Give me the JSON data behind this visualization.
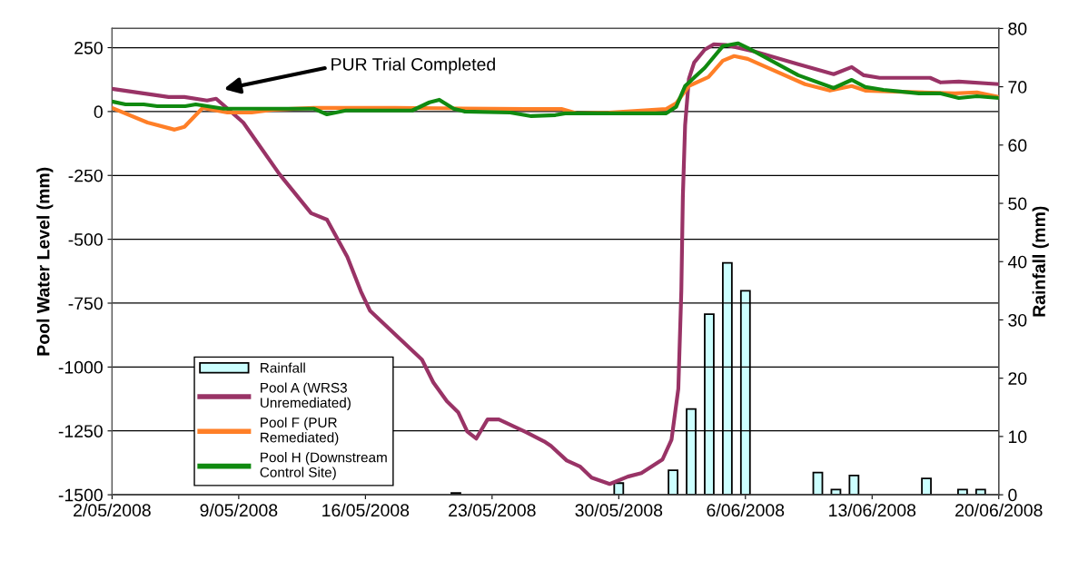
{
  "chart_data": {
    "type": "line",
    "ylabel": "Pool Water Level (mm)",
    "y2label": "Rainfall (mm)",
    "xlim": [
      "2008-05-02",
      "2008-06-20"
    ],
    "xticks": [
      {
        "value": "2008-05-02",
        "label": "2/05/2008"
      },
      {
        "value": "2008-05-09",
        "label": "9/05/2008"
      },
      {
        "value": "2008-05-16",
        "label": "16/05/2008"
      },
      {
        "value": "2008-05-23",
        "label": "23/05/2008"
      },
      {
        "value": "2008-05-30",
        "label": "30/05/2008"
      },
      {
        "value": "2008-06-06",
        "label": "6/06/2008"
      },
      {
        "value": "2008-06-13",
        "label": "13/06/2008"
      },
      {
        "value": "2008-06-20",
        "label": "20/06/2008"
      }
    ],
    "ylim": [
      -1500,
      325
    ],
    "yticks": [
      -1500,
      -1250,
      -1000,
      -750,
      -500,
      -250,
      0,
      250
    ],
    "y2lim": [
      0,
      80
    ],
    "y2ticks": [
      0,
      10,
      20,
      30,
      40,
      50,
      60,
      70,
      80
    ],
    "grid": "y",
    "legend": "bottom left",
    "annotations": [
      "PUR Trial Completed"
    ],
    "series": [
      {
        "name": "Rainfall",
        "type": "bar",
        "axis": "y2",
        "color": "#ccffff",
        "x": [
          "2008-05-21",
          "2008-05-30",
          "2008-06-02",
          "2008-06-03",
          "2008-06-04",
          "2008-06-05",
          "2008-06-06",
          "2008-06-10",
          "2008-06-11",
          "2008-06-12",
          "2008-06-16",
          "2008-06-18",
          "2008-06-19"
        ],
        "values": [
          0.3,
          2.0,
          4.2,
          14.7,
          31.0,
          39.8,
          35.0,
          3.8,
          0.9,
          3.3,
          2.8,
          0.9,
          0.9
        ]
      },
      {
        "name": "Pool A (WRS3\nUnremediated)",
        "color": "#993366",
        "x": [
          "2008-05-02T00:00",
          "2008-05-05T03:00",
          "2008-05-06T00:00",
          "2008-05-07T06:00",
          "2008-05-07T18:00",
          "2008-05-09T06:00",
          "2008-05-11T06:00",
          "2008-05-13T00:00",
          "2008-05-13T21:00",
          "2008-05-15T00:00",
          "2008-05-15T18:00",
          "2008-05-16T06:00",
          "2008-05-19T03:00",
          "2008-05-19T18:00",
          "2008-05-20T12:00",
          "2008-05-21T03:00",
          "2008-05-21T15:00",
          "2008-05-22T03:00",
          "2008-05-22T18:00",
          "2008-05-23T09:00",
          "2008-05-24T21:00",
          "2008-05-25T21:00",
          "2008-05-26T06:00",
          "2008-05-27T03:00",
          "2008-05-27T21:00",
          "2008-05-28T12:00",
          "2008-05-29T12:00",
          "2008-05-30T12:00",
          "2008-05-31T06:00",
          "2008-06-01T10:00",
          "2008-06-01T22:00",
          "2008-06-02T07:00",
          "2008-06-02T11:00",
          "2008-06-02T13:00",
          "2008-06-02T16:00",
          "2008-06-02T21:00",
          "2008-06-03T04:00",
          "2008-06-03T18:00",
          "2008-06-04T06:00",
          "2008-06-04T23:00",
          "2008-06-06T12:00",
          "2008-06-08T22:00",
          "2008-06-10T21:00",
          "2008-06-11T21:00",
          "2008-06-12T13:00",
          "2008-06-13T10:00",
          "2008-06-16T05:00",
          "2008-06-16T19:00",
          "2008-06-17T19:00",
          "2008-06-20T00:00"
        ],
        "values": [
          89,
          57,
          57,
          43,
          50,
          -43,
          -245,
          -398,
          -423,
          -569,
          -704,
          -779,
          -971,
          -1060,
          -1134,
          -1177,
          -1252,
          -1280,
          -1205,
          -1205,
          -1255,
          -1291,
          -1309,
          -1366,
          -1390,
          -1433,
          -1458,
          -1429,
          -1415,
          -1362,
          -1284,
          -1085,
          -700,
          -334,
          -53,
          128,
          192,
          242,
          263,
          260,
          235,
          185,
          146,
          174,
          142,
          132,
          132,
          114,
          117,
          107
        ]
      },
      {
        "name": "Pool F (PUR\nRemediated)",
        "color": "#ff7f27",
        "x": [
          "2008-05-02T00:00",
          "2008-05-03T23:00",
          "2008-05-05T11:00",
          "2008-05-06T00:00",
          "2008-05-07T00:00",
          "2008-05-08T09:00",
          "2008-05-09T17:00",
          "2008-05-10T21:00",
          "2008-05-13T04:00",
          "2008-05-17T15:00",
          "2008-05-24T21:00",
          "2008-05-26T20:00",
          "2008-05-27T16:00",
          "2008-05-29T11:00",
          "2008-06-01T15:00",
          "2008-06-02T04:00",
          "2008-06-02T21:00",
          "2008-06-03T23:00",
          "2008-06-04T18:00",
          "2008-06-05T09:00",
          "2008-06-06T03:00",
          "2008-06-09T07:00",
          "2008-06-10T16:00",
          "2008-06-11T21:00",
          "2008-06-12T15:00",
          "2008-06-17T14:00",
          "2008-06-18T19:00",
          "2008-06-20T00:00"
        ],
        "values": [
          14,
          -43,
          -71,
          -60,
          14,
          -4,
          -4,
          7,
          14,
          14,
          10,
          10,
          -7,
          -4,
          10,
          32,
          100,
          135,
          199,
          217,
          206,
          107,
          82,
          100,
          82,
          71,
          75,
          57
        ]
      },
      {
        "name": "Pool H (Downstream\nControl Site)",
        "color": "#108a10",
        "x": [
          "2008-05-02T00:00",
          "2008-05-02T18:00",
          "2008-05-03T18:00",
          "2008-05-04T12:00",
          "2008-05-06T01:00",
          "2008-05-06T15:00",
          "2008-05-08T04:00",
          "2008-05-13T04:00",
          "2008-05-13T21:00",
          "2008-05-14T22:00",
          "2008-05-18T14:00",
          "2008-05-19T13:00",
          "2008-05-20T02:00",
          "2008-05-20T21:00",
          "2008-05-21T12:00",
          "2008-05-24T00:00",
          "2008-05-25T04:00",
          "2008-05-26T12:00",
          "2008-05-27T01:00",
          "2008-06-01T15:00",
          "2008-06-02T04:00",
          "2008-06-02T16:00",
          "2008-06-03T18:00",
          "2008-06-04T18:00",
          "2008-06-05T14:00",
          "2008-06-06T03:00",
          "2008-06-08T22:00",
          "2008-06-10T21:00",
          "2008-06-11T21:00",
          "2008-06-12T15:00",
          "2008-06-13T15:00",
          "2008-06-15T14:00",
          "2008-06-16T19:00",
          "2008-06-17T19:00",
          "2008-06-18T19:00",
          "2008-06-20T00:00"
        ],
        "values": [
          39,
          28,
          28,
          21,
          21,
          28,
          11,
          11,
          -11,
          4,
          4,
          36,
          46,
          11,
          0,
          -4,
          -18,
          -14,
          -7,
          -7,
          18,
          100,
          171,
          256,
          267,
          249,
          142,
          92,
          124,
          96,
          85,
          71,
          71,
          53,
          60,
          53
        ]
      }
    ]
  }
}
